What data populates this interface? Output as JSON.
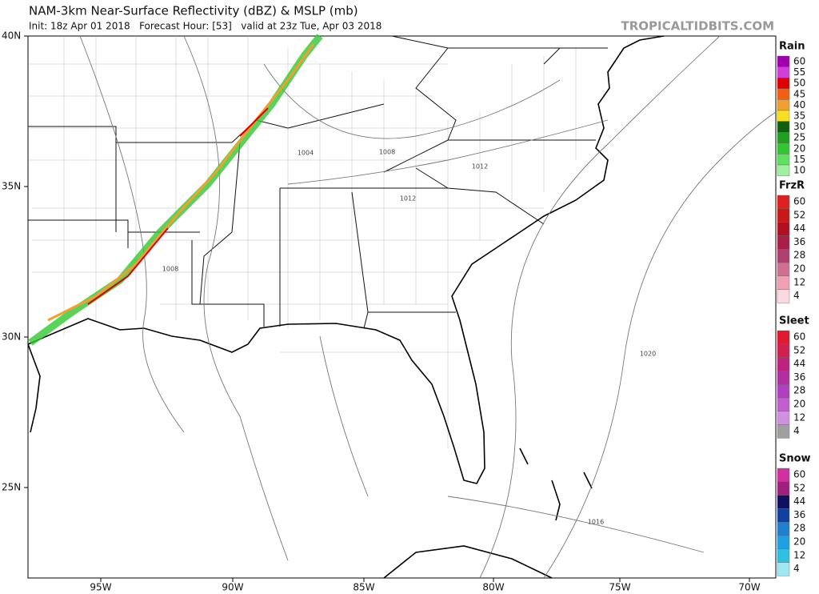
{
  "header": {
    "title": "NAM-3km Near-Surface Reflectivity (dBZ) & MSLP (mb)",
    "init": "Init: 18z Apr 01 2018   Forecast Hour: [53]   valid at 23z Tue, Apr 03 2018",
    "site": "TROPICALTIDBITS.COM"
  },
  "map": {
    "lat_labels": [
      "40N",
      "35N",
      "30N",
      "25N"
    ],
    "lon_labels": [
      "95W",
      "90W",
      "85W",
      "80W",
      "75W",
      "70W"
    ],
    "isobar_labels": [
      "1004",
      "1008",
      "1012",
      "1012",
      "1008",
      "1020",
      "1016"
    ]
  },
  "legends": [
    {
      "title": "Rain",
      "entries": [
        {
          "label": 60,
          "color": "#a000b0"
        },
        {
          "label": 55,
          "color": "#d040d8"
        },
        {
          "label": 50,
          "color": "#e00000"
        },
        {
          "label": 45,
          "color": "#f06010"
        },
        {
          "label": 40,
          "color": "#f0a030"
        },
        {
          "label": 35,
          "color": "#f8e020"
        },
        {
          "label": 30,
          "color": "#106010"
        },
        {
          "label": 25,
          "color": "#20a020"
        },
        {
          "label": 20,
          "color": "#30c830"
        },
        {
          "label": 15,
          "color": "#60e060"
        },
        {
          "label": 10,
          "color": "#a0f0a0"
        }
      ]
    },
    {
      "title": "FrzR",
      "entries": [
        {
          "label": 60,
          "color": "#e02020"
        },
        {
          "label": 52,
          "color": "#c81818"
        },
        {
          "label": 44,
          "color": "#b01020"
        },
        {
          "label": 36,
          "color": "#a82048"
        },
        {
          "label": 28,
          "color": "#b04070"
        },
        {
          "label": 20,
          "color": "#d07090"
        },
        {
          "label": 12,
          "color": "#f0a0b0"
        },
        {
          "label": 4,
          "color": "#fcd8e0"
        }
      ]
    },
    {
      "title": "Sleet",
      "entries": [
        {
          "label": 60,
          "color": "#e01830"
        },
        {
          "label": 52,
          "color": "#d02050"
        },
        {
          "label": 44,
          "color": "#c02080"
        },
        {
          "label": 36,
          "color": "#b030a0"
        },
        {
          "label": 28,
          "color": "#b040c0"
        },
        {
          "label": 20,
          "color": "#c060d0"
        },
        {
          "label": 12,
          "color": "#d090e0"
        },
        {
          "label": 4,
          "color": "#a0a0a0"
        }
      ]
    },
    {
      "title": "Snow",
      "entries": [
        {
          "label": 60,
          "color": "#d030a0"
        },
        {
          "label": 52,
          "color": "#a02080"
        },
        {
          "label": 44,
          "color": "#101060"
        },
        {
          "label": 36,
          "color": "#1040a0"
        },
        {
          "label": 28,
          "color": "#2080d0"
        },
        {
          "label": 20,
          "color": "#20a0e0"
        },
        {
          "label": 12,
          "color": "#30c0e0"
        },
        {
          "label": 4,
          "color": "#a0e8f0"
        }
      ]
    }
  ]
}
